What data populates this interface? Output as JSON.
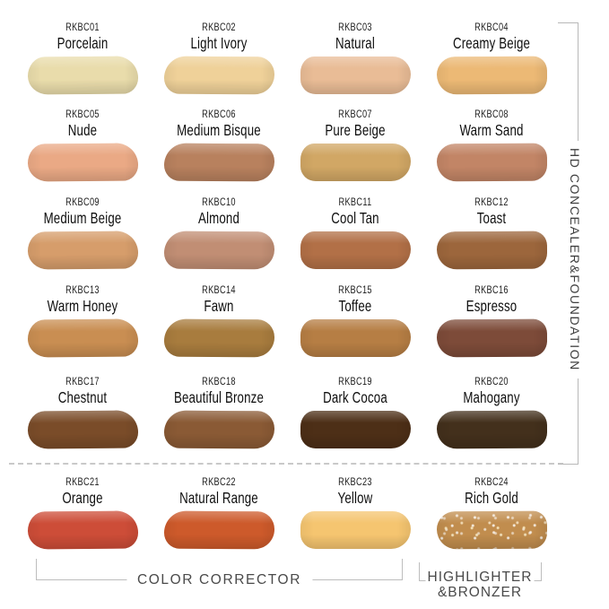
{
  "right_label": "HD CONCEALER&FOUNDATION",
  "groups": {
    "color_corrector": "COLOR CORRECTOR",
    "highlighter_line1": "HIGHLIGHTER",
    "highlighter_line2": "&BRONZER"
  },
  "swatches": [
    {
      "code": "RKBC01",
      "name": "Porcelain",
      "color": "#e9dcab"
    },
    {
      "code": "RKBC02",
      "name": "Light Ivory",
      "color": "#efd199"
    },
    {
      "code": "RKBC03",
      "name": "Natural",
      "color": "#e9bc96"
    },
    {
      "code": "RKBC04",
      "name": "Creamy Beige",
      "color": "#ecb975"
    },
    {
      "code": "RKBC05",
      "name": "Nude",
      "color": "#eaa985"
    },
    {
      "code": "RKBC06",
      "name": "Medium Bisque",
      "color": "#b8815e"
    },
    {
      "code": "RKBC07",
      "name": "Pure Beige",
      "color": "#d1a765"
    },
    {
      "code": "RKBC08",
      "name": "Warm Sand",
      "color": "#c28566"
    },
    {
      "code": "RKBC09",
      "name": "Medium Beige",
      "color": "#d69d6b"
    },
    {
      "code": "RKBC10",
      "name": "Almond",
      "color": "#c18e74"
    },
    {
      "code": "RKBC11",
      "name": "Cool Tan",
      "color": "#b27047"
    },
    {
      "code": "RKBC12",
      "name": "Toast",
      "color": "#9c663c"
    },
    {
      "code": "RKBC13",
      "name": "Warm Honey",
      "color": "#c98e52"
    },
    {
      "code": "RKBC14",
      "name": "Fawn",
      "color": "#a87c3e"
    },
    {
      "code": "RKBC15",
      "name": "Toffee",
      "color": "#b67e44"
    },
    {
      "code": "RKBC16",
      "name": "Espresso",
      "color": "#7d4b39"
    },
    {
      "code": "RKBC17",
      "name": "Chestnut",
      "color": "#7a4c29"
    },
    {
      "code": "RKBC18",
      "name": "Beautiful Bronze",
      "color": "#8a5a35"
    },
    {
      "code": "RKBC19",
      "name": "Dark Cocoa",
      "color": "#4d2f17"
    },
    {
      "code": "RKBC20",
      "name": "Mahogany",
      "color": "#43301c"
    },
    {
      "code": "RKBC21",
      "name": "Orange",
      "color": "#cd4d38"
    },
    {
      "code": "RKBC22",
      "name": "Natural Range",
      "color": "#cd5a2b"
    },
    {
      "code": "RKBC23",
      "name": "Yellow",
      "color": "#f5c570"
    },
    {
      "code": "RKBC24",
      "name": "Rich Gold",
      "color": "#c18d4e"
    }
  ]
}
